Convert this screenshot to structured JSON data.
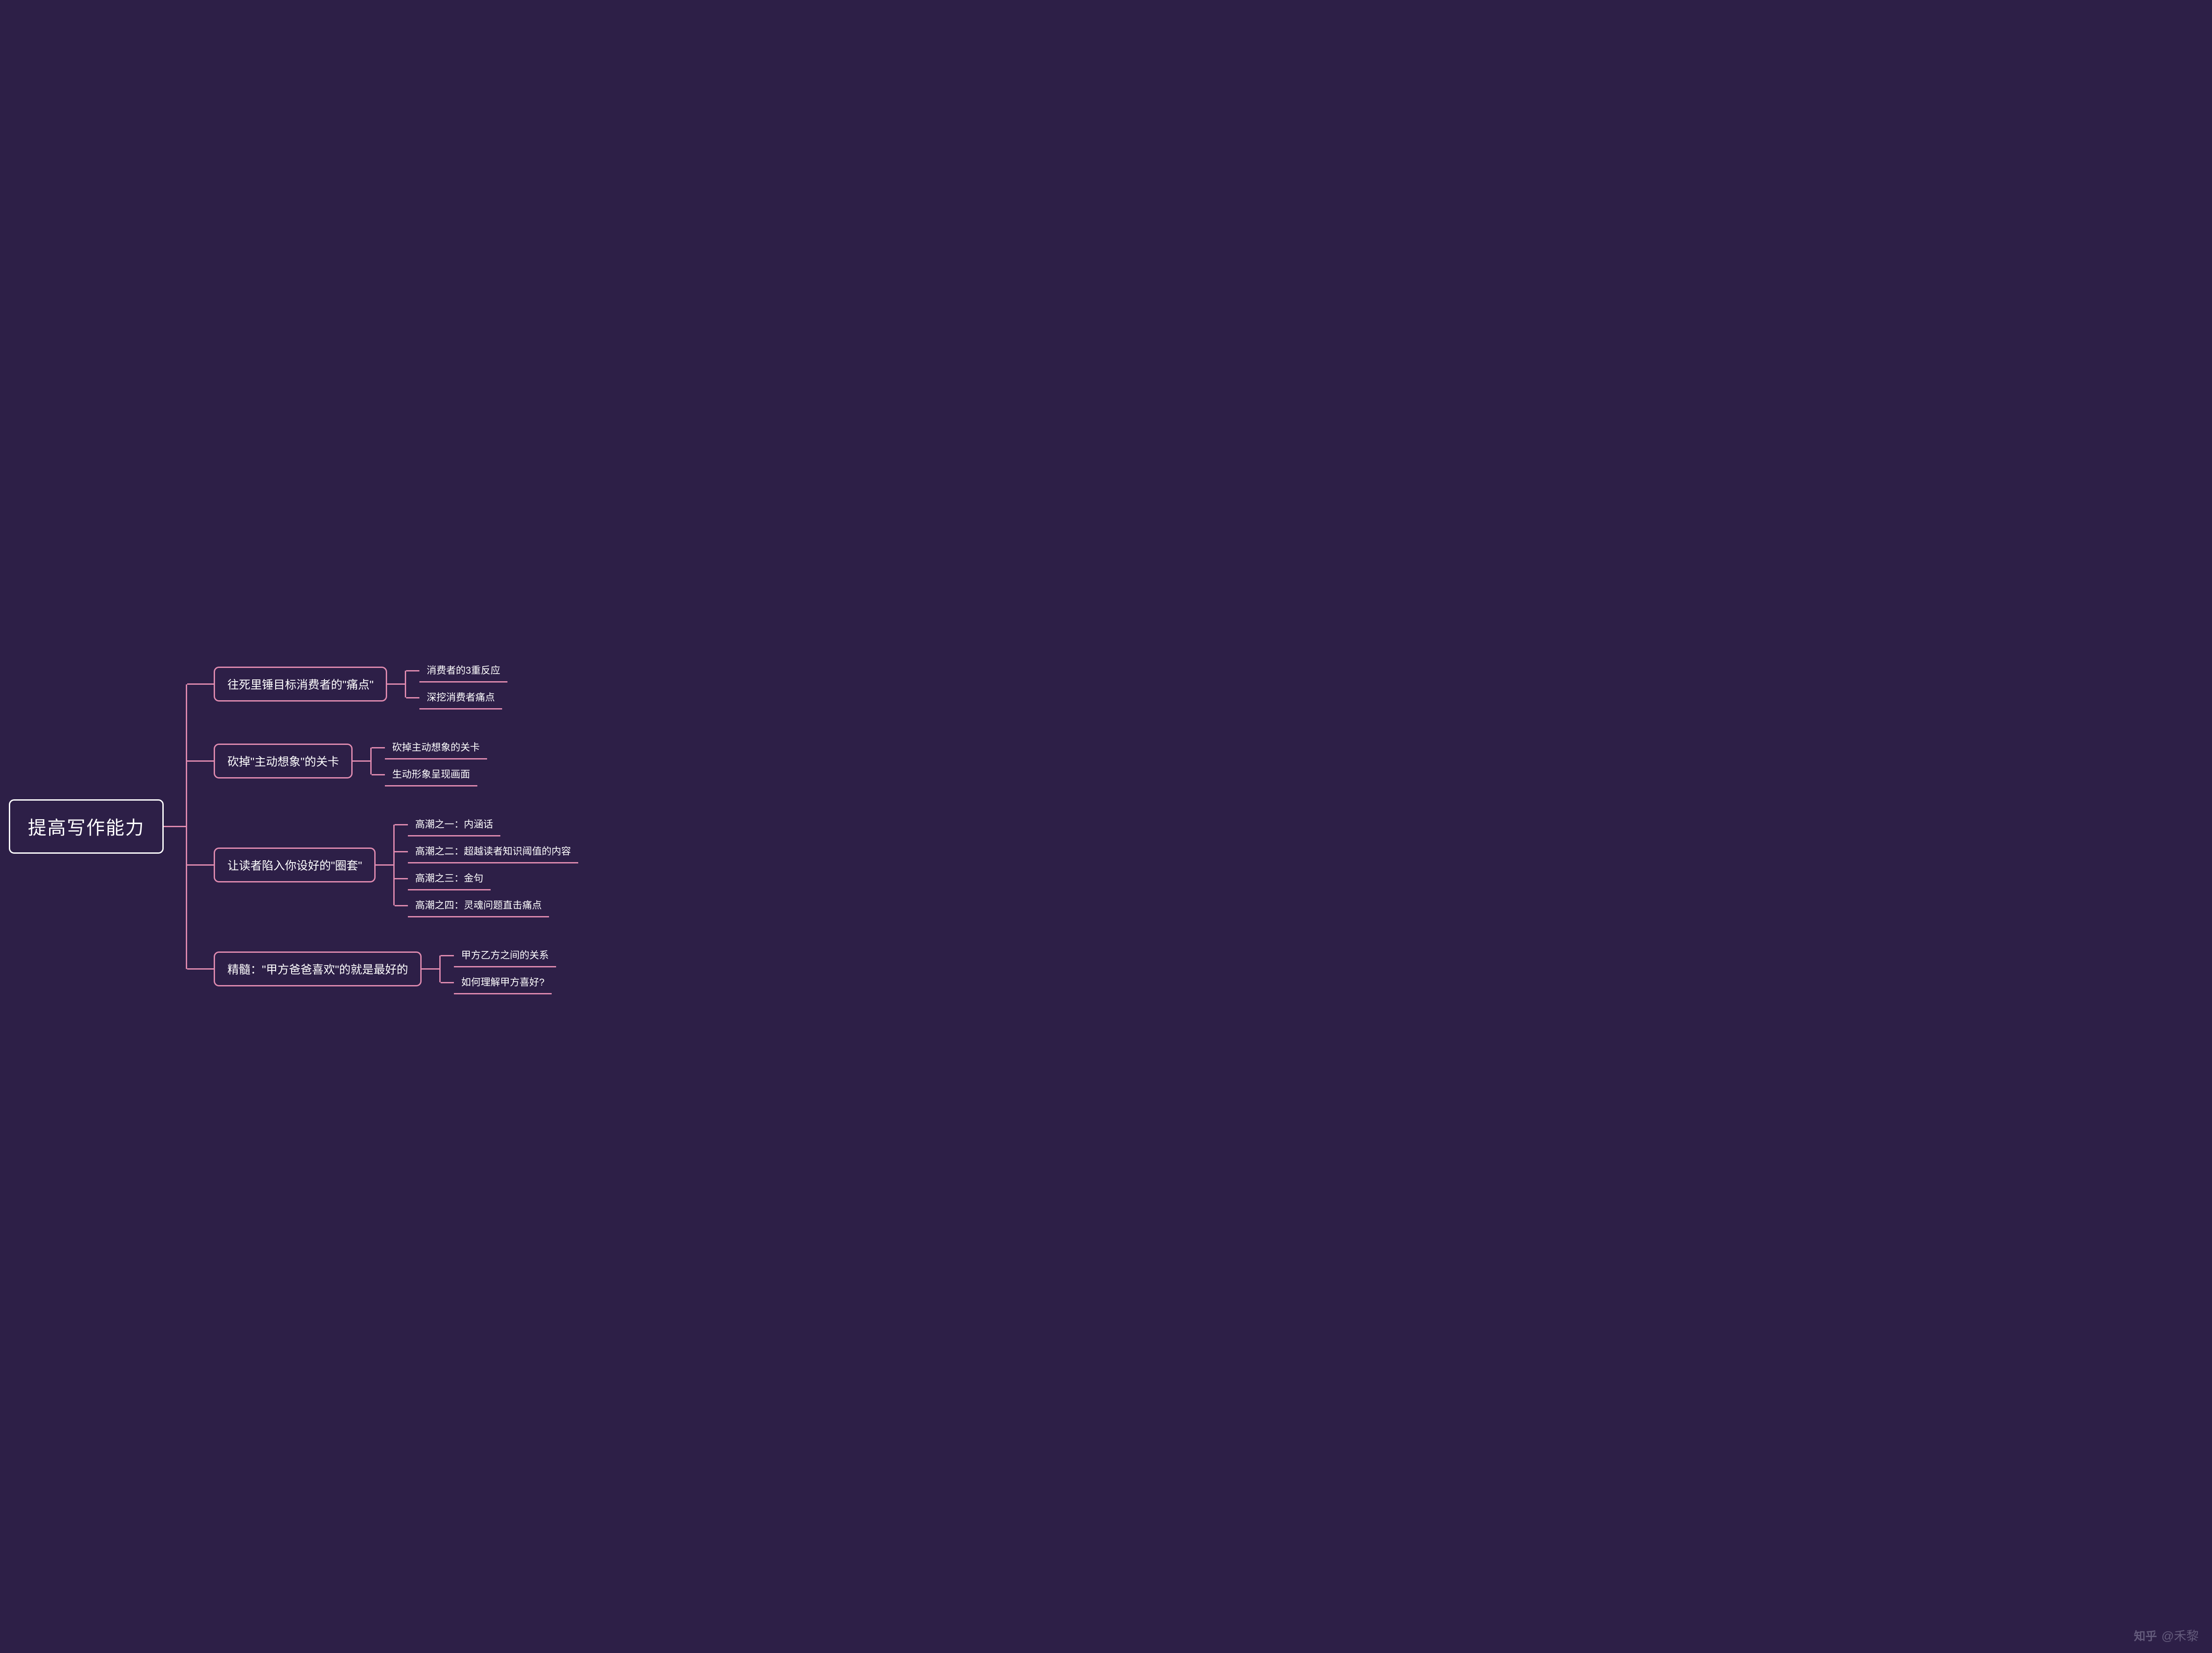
{
  "type": "tree",
  "colors": {
    "background": "#2d1f47",
    "root_border": "#ffffff",
    "branch_color": "#e08bb0",
    "text_color": "#ffffff",
    "watermark_color": "rgba(200,200,220,0.35)"
  },
  "typography": {
    "root_fontsize": 42,
    "level2_fontsize": 26,
    "leaf_fontsize": 22,
    "watermark_fontsize": 28
  },
  "styling": {
    "root_border_radius": 12,
    "level2_border_radius": 12,
    "border_width": 3,
    "connector_width": 3,
    "branch_gap": 60,
    "sub_branch_gap": 8
  },
  "root": {
    "label": "提高写作能力"
  },
  "branches": [
    {
      "label": "往死里锤目标消费者的\"痛点\"",
      "children": [
        {
          "label": "消费者的3重反应"
        },
        {
          "label": "深挖消费者痛点"
        }
      ]
    },
    {
      "label": "砍掉\"主动想象\"的关卡",
      "children": [
        {
          "label": "砍掉主动想象的关卡"
        },
        {
          "label": "生动形象呈现画面"
        }
      ]
    },
    {
      "label": "让读者陷入你设好的\"圈套\"",
      "children": [
        {
          "label": "高潮之一：内涵话"
        },
        {
          "label": "高潮之二：超越读者知识阈值的内容"
        },
        {
          "label": "高潮之三：金句"
        },
        {
          "label": "高潮之四：灵魂问题直击痛点"
        }
      ]
    },
    {
      "label": "精髓：\"甲方爸爸喜欢\"的就是最好的",
      "children": [
        {
          "label": "甲方乙方之间的关系"
        },
        {
          "label": "如何理解甲方喜好?"
        }
      ]
    }
  ],
  "watermark": {
    "logo": "知乎",
    "text": "@禾黎"
  }
}
